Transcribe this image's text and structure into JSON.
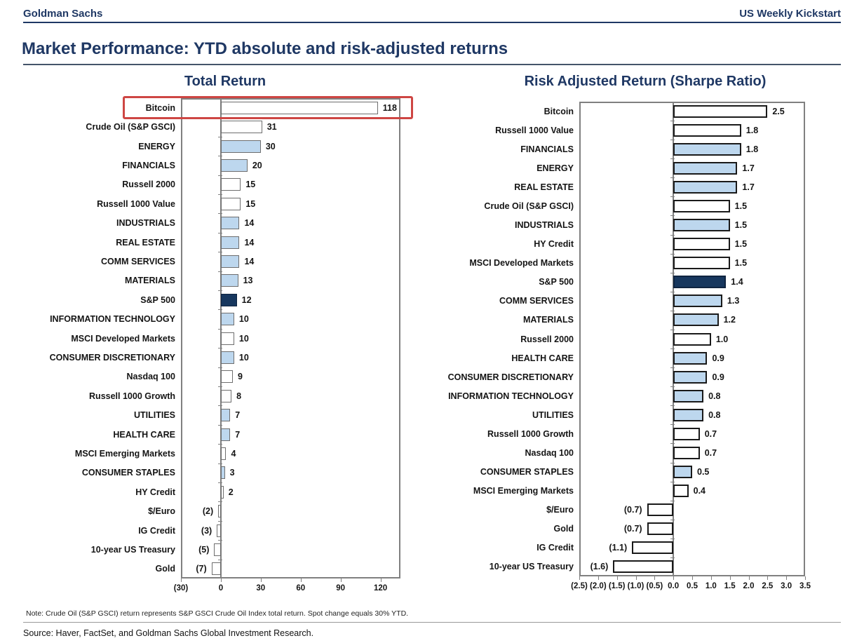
{
  "header": {
    "brand": "Goldman Sachs",
    "edition": "US Weekly Kickstart"
  },
  "page_title": "Market Performance: YTD absolute and risk-adjusted returns",
  "note": "Note: Crude Oil (S&P GSCI) return represents S&P GSCI Crude Oil Index total return. Spot change equals 30% YTD.",
  "source": "Source: Haver, FactSet, and Goldman Sachs Global Investment Research.",
  "colors": {
    "navy_text": "#1F3864",
    "bar_navy": "#17375E",
    "bar_light_blue": "#BDD7EE",
    "bar_white": "#FFFFFF",
    "bar_border_gray": "#6E6E6E",
    "bar_border_black": "#1A1A1A",
    "frame_gray": "#808080",
    "highlight_red": "#CE4643"
  },
  "chart_data": [
    {
      "type": "bar",
      "orientation": "horizontal",
      "title": "Total Return",
      "xlim": [
        -30,
        135
      ],
      "xticks": [
        -30,
        0,
        30,
        60,
        90,
        120
      ],
      "xtick_labels": [
        "(30)",
        "0",
        "30",
        "60",
        "90",
        "120"
      ],
      "grid": false,
      "highlight": {
        "label": "Bitcoin",
        "color": "#CE4643"
      },
      "bars": [
        {
          "label": "Bitcoin",
          "value": 118,
          "display": "118",
          "style": "white"
        },
        {
          "label": "Crude Oil (S&P GSCI)",
          "value": 31,
          "display": "31",
          "style": "white"
        },
        {
          "label": "ENERGY",
          "value": 30,
          "display": "30",
          "style": "blue"
        },
        {
          "label": "FINANCIALS",
          "value": 20,
          "display": "20",
          "style": "blue"
        },
        {
          "label": "Russell 2000",
          "value": 15,
          "display": "15",
          "style": "white"
        },
        {
          "label": "Russell 1000 Value",
          "value": 15,
          "display": "15",
          "style": "white"
        },
        {
          "label": "INDUSTRIALS",
          "value": 14,
          "display": "14",
          "style": "blue"
        },
        {
          "label": "REAL ESTATE",
          "value": 14,
          "display": "14",
          "style": "blue"
        },
        {
          "label": "COMM SERVICES",
          "value": 14,
          "display": "14",
          "style": "blue"
        },
        {
          "label": "MATERIALS",
          "value": 13,
          "display": "13",
          "style": "blue"
        },
        {
          "label": "S&P 500",
          "value": 12,
          "display": "12",
          "style": "navy"
        },
        {
          "label": "INFORMATION TECHNOLOGY",
          "value": 10,
          "display": "10",
          "style": "blue"
        },
        {
          "label": "MSCI Developed Markets",
          "value": 10,
          "display": "10",
          "style": "white"
        },
        {
          "label": "CONSUMER DISCRETIONARY",
          "value": 10,
          "display": "10",
          "style": "blue"
        },
        {
          "label": "Nasdaq 100",
          "value": 9,
          "display": "9",
          "style": "white"
        },
        {
          "label": "Russell 1000 Growth",
          "value": 8,
          "display": "8",
          "style": "white"
        },
        {
          "label": "UTILITIES",
          "value": 7,
          "display": "7",
          "style": "blue"
        },
        {
          "label": "HEALTH CARE",
          "value": 7,
          "display": "7",
          "style": "blue"
        },
        {
          "label": "MSCI Emerging Markets",
          "value": 4,
          "display": "4",
          "style": "white"
        },
        {
          "label": "CONSUMER STAPLES",
          "value": 3,
          "display": "3",
          "style": "blue"
        },
        {
          "label": "HY Credit",
          "value": 2,
          "display": "2",
          "style": "white"
        },
        {
          "label": "$/Euro",
          "value": -2,
          "display": "(2)",
          "style": "white"
        },
        {
          "label": "IG Credit",
          "value": -3,
          "display": "(3)",
          "style": "white"
        },
        {
          "label": "10-year US Treasury",
          "value": -5,
          "display": "(5)",
          "style": "white"
        },
        {
          "label": "Gold",
          "value": -7,
          "display": "(7)",
          "style": "white"
        }
      ]
    },
    {
      "type": "bar",
      "orientation": "horizontal",
      "title": "Risk Adjusted Return (Sharpe Ratio)",
      "xlim": [
        -2.5,
        3.5
      ],
      "xticks": [
        -2.5,
        -2.0,
        -1.5,
        -1.0,
        -0.5,
        0.0,
        0.5,
        1.0,
        1.5,
        2.0,
        2.5,
        3.0,
        3.5
      ],
      "xtick_labels": [
        "(2.5)",
        "(2.0)",
        "(1.5)",
        "(1.0)",
        "(0.5)",
        "0.0",
        "0.5",
        "1.0",
        "1.5",
        "2.0",
        "2.5",
        "3.0",
        "3.5"
      ],
      "grid": false,
      "bars": [
        {
          "label": "Bitcoin",
          "value": 2.5,
          "display": "2.5",
          "style": "white"
        },
        {
          "label": "Russell 1000 Value",
          "value": 1.8,
          "display": "1.8",
          "style": "white"
        },
        {
          "label": "FINANCIALS",
          "value": 1.8,
          "display": "1.8",
          "style": "blue"
        },
        {
          "label": "ENERGY",
          "value": 1.7,
          "display": "1.7",
          "style": "blue"
        },
        {
          "label": "REAL ESTATE",
          "value": 1.7,
          "display": "1.7",
          "style": "blue"
        },
        {
          "label": "Crude Oil (S&P GSCI)",
          "value": 1.5,
          "display": "1.5",
          "style": "white"
        },
        {
          "label": "INDUSTRIALS",
          "value": 1.5,
          "display": "1.5",
          "style": "blue"
        },
        {
          "label": "HY Credit",
          "value": 1.5,
          "display": "1.5",
          "style": "white"
        },
        {
          "label": "MSCI Developed Markets",
          "value": 1.5,
          "display": "1.5",
          "style": "white"
        },
        {
          "label": "S&P 500",
          "value": 1.4,
          "display": "1.4",
          "style": "navy"
        },
        {
          "label": "COMM SERVICES",
          "value": 1.3,
          "display": "1.3",
          "style": "blue"
        },
        {
          "label": "MATERIALS",
          "value": 1.2,
          "display": "1.2",
          "style": "blue"
        },
        {
          "label": "Russell 2000",
          "value": 1.0,
          "display": "1.0",
          "style": "white"
        },
        {
          "label": "HEALTH CARE",
          "value": 0.9,
          "display": "0.9",
          "style": "blue"
        },
        {
          "label": "CONSUMER DISCRETIONARY",
          "value": 0.9,
          "display": "0.9",
          "style": "blue"
        },
        {
          "label": "INFORMATION TECHNOLOGY",
          "value": 0.8,
          "display": "0.8",
          "style": "blue"
        },
        {
          "label": "UTILITIES",
          "value": 0.8,
          "display": "0.8",
          "style": "blue"
        },
        {
          "label": "Russell 1000 Growth",
          "value": 0.7,
          "display": "0.7",
          "style": "white"
        },
        {
          "label": "Nasdaq 100",
          "value": 0.7,
          "display": "0.7",
          "style": "white"
        },
        {
          "label": "CONSUMER STAPLES",
          "value": 0.5,
          "display": "0.5",
          "style": "blue"
        },
        {
          "label": "MSCI Emerging Markets",
          "value": 0.4,
          "display": "0.4",
          "style": "white"
        },
        {
          "label": "$/Euro",
          "value": -0.7,
          "display": "(0.7)",
          "style": "white"
        },
        {
          "label": "Gold",
          "value": -0.7,
          "display": "(0.7)",
          "style": "white"
        },
        {
          "label": "IG Credit",
          "value": -1.1,
          "display": "(1.1)",
          "style": "white"
        },
        {
          "label": "10-year US Treasury",
          "value": -1.6,
          "display": "(1.6)",
          "style": "white"
        }
      ]
    }
  ]
}
